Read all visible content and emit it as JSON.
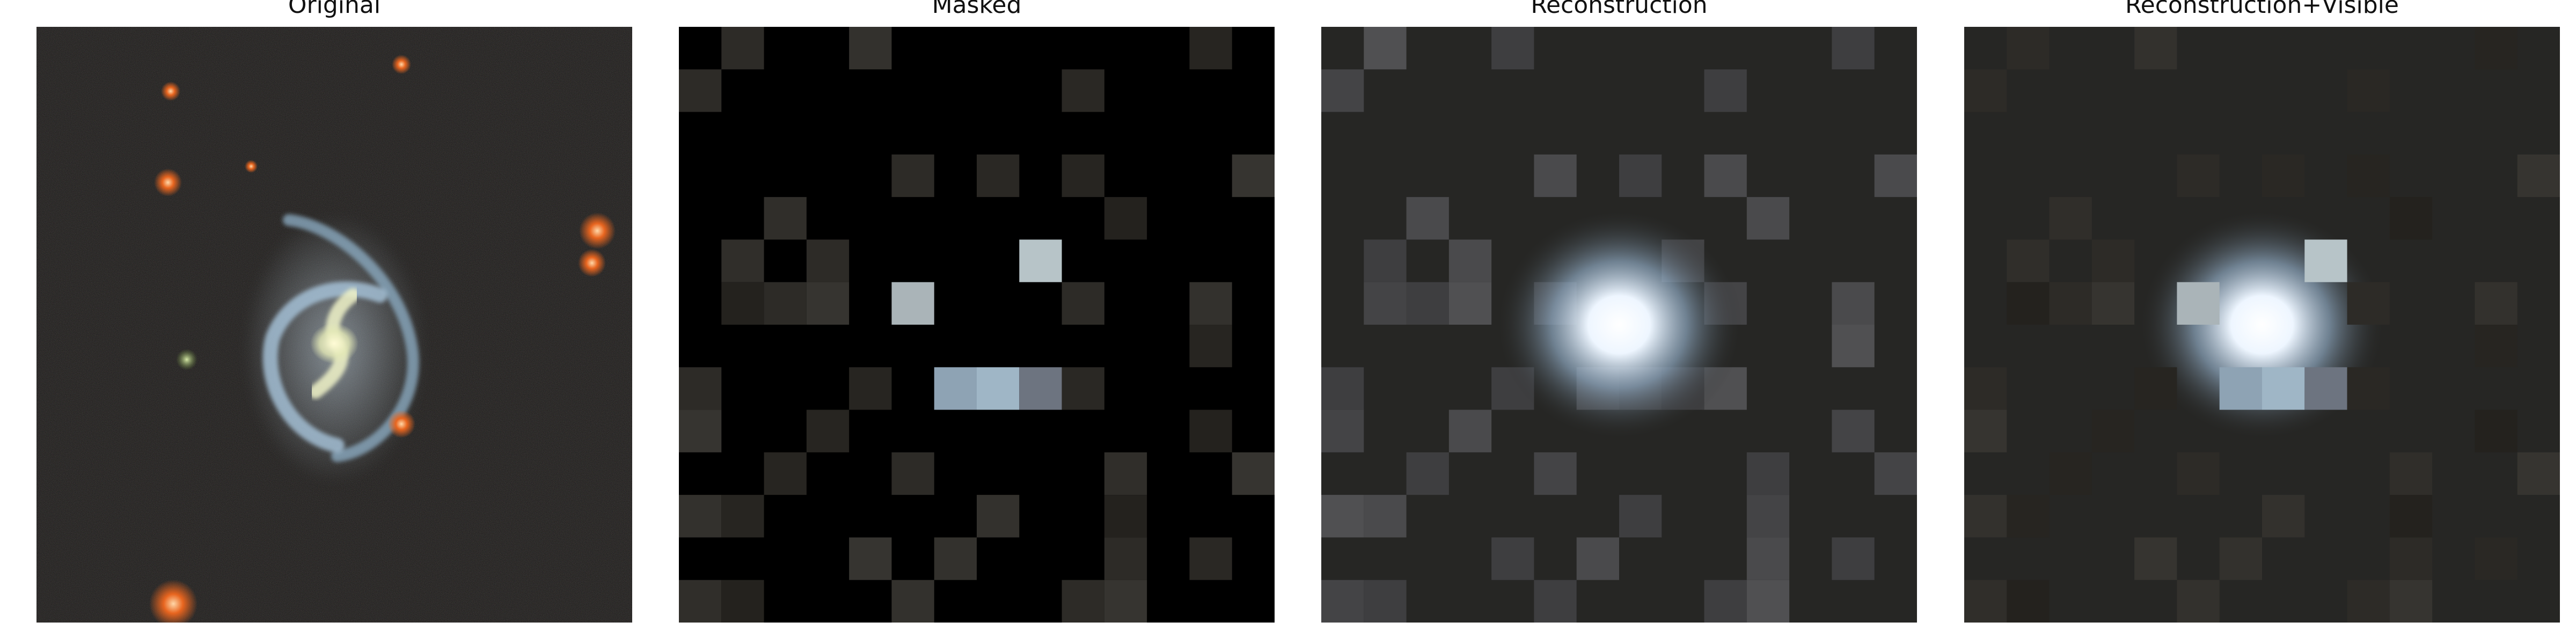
{
  "panels": [
    {
      "id": "original",
      "title": "Original"
    },
    {
      "id": "masked",
      "title": "Masked"
    },
    {
      "id": "reconstruction",
      "title": "Reconstruction"
    },
    {
      "id": "reconstruction_visible",
      "title": "Reconstruction+Visible"
    }
  ],
  "grid_size": 14,
  "visible_patches": [
    [
      0,
      1
    ],
    [
      0,
      4
    ],
    [
      0,
      12
    ],
    [
      1,
      0
    ],
    [
      1,
      9
    ],
    [
      3,
      5
    ],
    [
      3,
      7
    ],
    [
      3,
      9
    ],
    [
      3,
      13
    ],
    [
      4,
      2
    ],
    [
      4,
      10
    ],
    [
      5,
      1
    ],
    [
      5,
      3
    ],
    [
      5,
      8
    ],
    [
      6,
      1
    ],
    [
      6,
      2
    ],
    [
      6,
      3
    ],
    [
      6,
      5
    ],
    [
      6,
      9
    ],
    [
      6,
      12
    ],
    [
      7,
      12
    ],
    [
      8,
      0
    ],
    [
      8,
      4
    ],
    [
      8,
      6
    ],
    [
      8,
      7
    ],
    [
      8,
      8
    ],
    [
      8,
      9
    ],
    [
      9,
      0
    ],
    [
      9,
      3
    ],
    [
      9,
      12
    ],
    [
      10,
      2
    ],
    [
      10,
      5
    ],
    [
      10,
      10
    ],
    [
      10,
      13
    ],
    [
      11,
      0
    ],
    [
      11,
      1
    ],
    [
      11,
      7
    ],
    [
      11,
      10
    ],
    [
      12,
      4
    ],
    [
      12,
      6
    ],
    [
      12,
      10
    ],
    [
      12,
      12
    ],
    [
      13,
      0
    ],
    [
      13,
      1
    ],
    [
      13,
      5
    ],
    [
      13,
      9
    ],
    [
      13,
      10
    ]
  ],
  "colors": {
    "background": "#ffffff",
    "sky": "#1c1b18",
    "mask_fill": "#000000",
    "reconstruction_fill": "#262624",
    "galaxy_core": "#fffbd6",
    "galaxy_arm": "#a9c6dd",
    "reconstruction_glow": "#eef6ff",
    "star_orange": "#e8651f"
  }
}
